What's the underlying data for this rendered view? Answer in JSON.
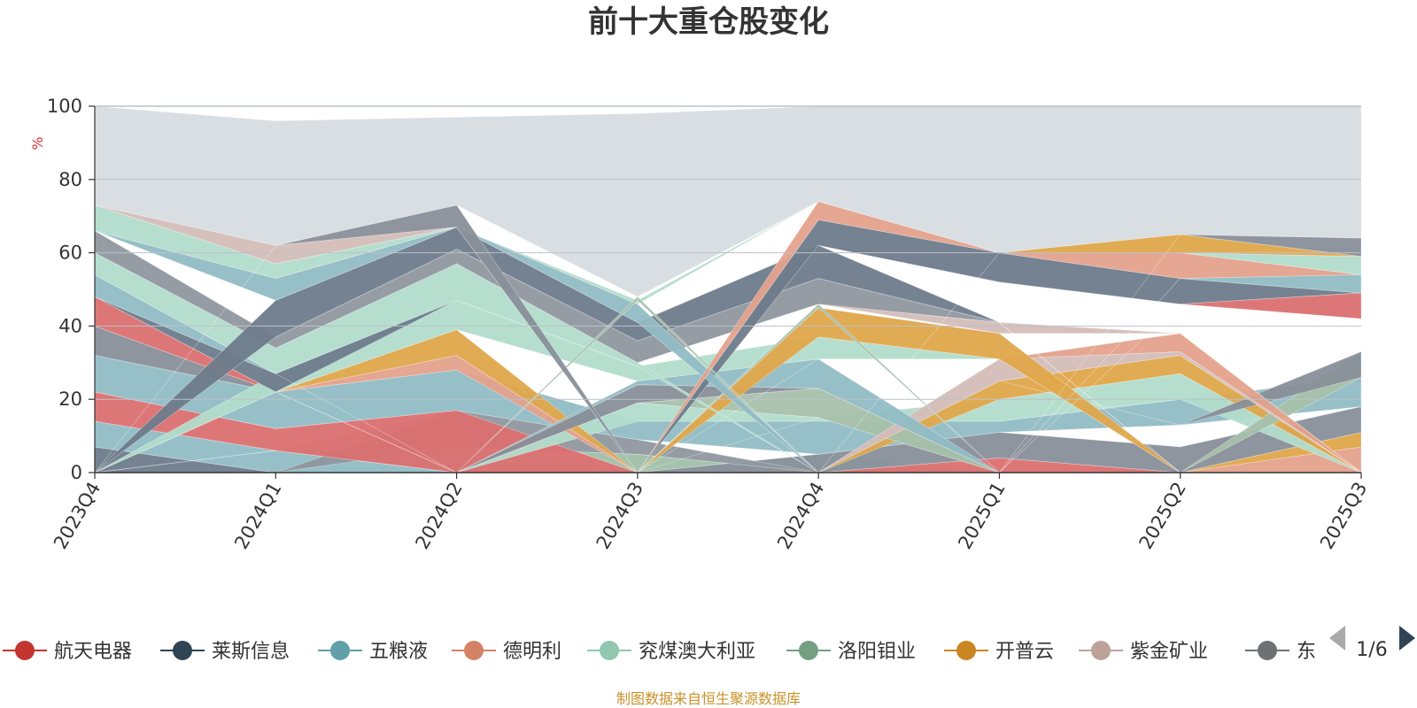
{
  "chart_data": {
    "type": "area",
    "title": "前十大重仓股变化",
    "ylabel": "%",
    "ylim": [
      0,
      100
    ],
    "yticks": [
      0,
      20,
      40,
      60,
      80,
      100
    ],
    "categories": [
      "2023Q4",
      "2024Q1",
      "2024Q2",
      "2024Q3",
      "2024Q4",
      "2025Q1",
      "2025Q2",
      "2025Q3"
    ],
    "grid": true,
    "legend_position": "bottom",
    "bands": [
      {
        "color": "#6e7b8b",
        "lower": [
          0,
          0,
          0,
          0,
          0,
          0,
          0,
          0
        ],
        "upper": [
          7,
          0,
          0,
          0,
          0,
          0,
          0,
          0
        ]
      },
      {
        "color": "#91bcc5",
        "lower": [
          7,
          0,
          0,
          0,
          0,
          0,
          0,
          0
        ],
        "upper": [
          14,
          6,
          0,
          0,
          0,
          0,
          0,
          0
        ]
      },
      {
        "color": "#9fbfa8",
        "lower": [
          0,
          6,
          0,
          0,
          0,
          0,
          0,
          0
        ],
        "upper": [
          0,
          6,
          7,
          5,
          0,
          0,
          0,
          0
        ]
      },
      {
        "color": "#b2dccb",
        "lower": [
          0,
          0,
          0,
          0,
          0,
          0,
          0,
          0
        ],
        "upper": [
          0,
          0,
          0,
          0,
          5,
          0,
          0,
          0
        ]
      },
      {
        "color": "#db7070",
        "lower": [
          0,
          0,
          0,
          0,
          0,
          0,
          0,
          0
        ],
        "upper": [
          0,
          0,
          0,
          0,
          0,
          4,
          0,
          0
        ]
      },
      {
        "color": "#e4a18c",
        "lower": [
          0,
          0,
          0,
          0,
          0,
          0,
          0,
          0
        ],
        "upper": [
          0,
          0,
          0,
          0,
          0,
          0,
          0,
          7
        ]
      },
      {
        "color": "#dfa64b",
        "lower": [
          0,
          0,
          0,
          0,
          0,
          0,
          0,
          7
        ],
        "upper": [
          0,
          0,
          0,
          0,
          0,
          0,
          0,
          11
        ]
      },
      {
        "color": "#888f99",
        "lower": [
          0,
          0,
          0,
          0,
          0,
          4,
          0,
          11
        ],
        "upper": [
          0,
          0,
          0,
          0,
          5,
          11,
          7,
          18
        ]
      },
      {
        "color": "#d4bdb8",
        "lower": [
          0,
          6,
          7,
          0,
          0,
          0,
          0,
          0
        ],
        "upper": [
          0,
          6,
          17,
          0,
          0,
          0,
          0,
          0
        ]
      },
      {
        "color": "#8f979f",
        "lower": [
          0,
          0,
          7,
          5,
          0,
          0,
          0,
          0
        ],
        "upper": [
          0,
          0,
          17,
          9,
          0,
          0,
          0,
          0
        ]
      },
      {
        "color": "#db7070",
        "lower": [
          14,
          6,
          0,
          0,
          0,
          0,
          0,
          0
        ],
        "upper": [
          22,
          12,
          17,
          0,
          0,
          0,
          0,
          0
        ]
      },
      {
        "color": "#91bcc5",
        "lower": [
          22,
          12,
          17,
          9,
          5,
          11,
          13,
          18
        ],
        "upper": [
          32,
          22,
          28,
          14,
          14,
          14,
          20,
          26
        ]
      },
      {
        "color": "#b2dccb",
        "lower": [
          0,
          0,
          0,
          14,
          14,
          14,
          20,
          0
        ],
        "upper": [
          0,
          0,
          0,
          19,
          15,
          20,
          27,
          0
        ]
      },
      {
        "color": "#e4a18c",
        "lower": [
          0,
          22,
          28,
          0,
          0,
          0,
          0,
          0
        ],
        "upper": [
          0,
          22,
          32,
          0,
          0,
          0,
          0,
          0
        ]
      },
      {
        "color": "#dfa64b",
        "lower": [
          0,
          22,
          32,
          0,
          0,
          20,
          27,
          0
        ],
        "upper": [
          0,
          22,
          39,
          0,
          0,
          25,
          32,
          0
        ]
      },
      {
        "color": "#9fbfa8",
        "lower": [
          0,
          0,
          0,
          0,
          15,
          0,
          0,
          0
        ],
        "upper": [
          0,
          0,
          0,
          0,
          15,
          0,
          0,
          0
        ]
      },
      {
        "color": "#a7c0ab",
        "lower": [
          0,
          0,
          0,
          19,
          15,
          0,
          0,
          26
        ],
        "upper": [
          0,
          0,
          0,
          19,
          23,
          0,
          0,
          33
        ]
      },
      {
        "color": "#888f99",
        "lower": [
          32,
          22,
          0,
          19,
          23,
          25,
          13,
          26
        ],
        "upper": [
          40,
          22,
          0,
          24,
          23,
          25,
          13,
          33
        ]
      },
      {
        "color": "#d4bdb8",
        "lower": [
          0,
          0,
          0,
          0,
          0,
          25,
          32,
          0
        ],
        "upper": [
          0,
          0,
          0,
          0,
          0,
          31,
          33,
          0
        ]
      },
      {
        "color": "#91bcc5",
        "lower": [
          0,
          0,
          0,
          24,
          23,
          0,
          0,
          0
        ],
        "upper": [
          0,
          0,
          0,
          25,
          31,
          0,
          0,
          0
        ]
      },
      {
        "color": "#e4a18c",
        "lower": [
          0,
          0,
          0,
          0,
          31,
          31,
          33,
          0
        ],
        "upper": [
          0,
          0,
          0,
          0,
          31,
          31,
          38,
          0
        ]
      },
      {
        "color": "#db7070",
        "lower": [
          40,
          22,
          0,
          0,
          0,
          0,
          0,
          0
        ],
        "upper": [
          48,
          22,
          0,
          0,
          0,
          0,
          0,
          0
        ]
      },
      {
        "color": "#b2dccb",
        "lower": [
          0,
          22,
          39,
          25,
          31,
          31,
          0,
          0
        ],
        "upper": [
          0,
          27,
          47,
          29,
          37,
          31,
          0,
          0
        ]
      },
      {
        "color": "#dfa64b",
        "lower": [
          0,
          0,
          0,
          0,
          37,
          31,
          0,
          0
        ],
        "upper": [
          0,
          0,
          0,
          0,
          45,
          38,
          0,
          0
        ]
      },
      {
        "color": "#6e7b8b",
        "lower": [
          48,
          22,
          47,
          29,
          45,
          38,
          38,
          33
        ],
        "upper": [
          48,
          27,
          47,
          29,
          45,
          38,
          38,
          33
        ]
      },
      {
        "color": "#91bcc5",
        "lower": [
          48,
          27,
          0,
          0,
          0,
          0,
          0,
          0
        ],
        "upper": [
          54,
          27,
          0,
          0,
          0,
          0,
          0,
          0
        ]
      },
      {
        "color": "#b2dccb",
        "lower": [
          54,
          27,
          47,
          29,
          0,
          0,
          0,
          0
        ],
        "upper": [
          60,
          34,
          57,
          30,
          0,
          0,
          0,
          0
        ]
      },
      {
        "color": "#a7c0ab",
        "lower": [
          0,
          0,
          0,
          0,
          45,
          0,
          0,
          0
        ],
        "upper": [
          0,
          0,
          0,
          0,
          46,
          0,
          0,
          0
        ]
      },
      {
        "color": "#d4bdb8",
        "lower": [
          0,
          0,
          0,
          0,
          46,
          38,
          38,
          0
        ],
        "upper": [
          0,
          0,
          0,
          0,
          46,
          41,
          38,
          0
        ]
      },
      {
        "color": "#8f979f",
        "lower": [
          60,
          34,
          57,
          30,
          46,
          41,
          0,
          0
        ],
        "upper": [
          66,
          37,
          61,
          36,
          53,
          41,
          0,
          0
        ]
      },
      {
        "color": "#6e7b8b",
        "lower": [
          0,
          37,
          61,
          36,
          53,
          41,
          0,
          0
        ],
        "upper": [
          0,
          47,
          67,
          41,
          62,
          41,
          0,
          0
        ]
      },
      {
        "color": "#6e7b8b",
        "lower": [
          0,
          0,
          0,
          0,
          62,
          52,
          46,
          49
        ],
        "upper": [
          0,
          0,
          0,
          0,
          69,
          60,
          53,
          49
        ]
      },
      {
        "color": "#db7070",
        "lower": [
          0,
          0,
          0,
          0,
          0,
          0,
          46,
          42
        ],
        "upper": [
          0,
          0,
          0,
          0,
          0,
          0,
          46,
          49
        ]
      },
      {
        "color": "#91bcc5",
        "lower": [
          66,
          47,
          67,
          41,
          0,
          0,
          53,
          49
        ],
        "upper": [
          66,
          53,
          67,
          46,
          0,
          0,
          53,
          54
        ]
      },
      {
        "color": "#e4a18c",
        "lower": [
          0,
          0,
          0,
          0,
          69,
          60,
          53,
          54
        ],
        "upper": [
          0,
          0,
          0,
          0,
          74,
          60,
          60,
          54
        ]
      },
      {
        "color": "#b2dccb",
        "lower": [
          66,
          53,
          67,
          46,
          74,
          60,
          60,
          54
        ],
        "upper": [
          73,
          57,
          67,
          47,
          74,
          60,
          60,
          59
        ]
      },
      {
        "color": "#a7c0ab",
        "lower": [
          0,
          0,
          0,
          47,
          0,
          0,
          0,
          0
        ],
        "upper": [
          0,
          0,
          0,
          48,
          0,
          0,
          0,
          0
        ]
      },
      {
        "color": "#dfa64b",
        "lower": [
          0,
          0,
          0,
          0,
          0,
          60,
          60,
          59
        ],
        "upper": [
          0,
          0,
          0,
          0,
          0,
          60,
          65,
          59
        ]
      },
      {
        "color": "#d4bdb8",
        "lower": [
          73,
          57,
          67,
          0,
          0,
          0,
          0,
          0
        ],
        "upper": [
          73,
          62,
          67,
          0,
          0,
          0,
          0,
          0
        ]
      },
      {
        "color": "#888f99",
        "lower": [
          0,
          62,
          67,
          0,
          0,
          0,
          65,
          59
        ],
        "upper": [
          0,
          62,
          73,
          0,
          0,
          0,
          65,
          64
        ]
      },
      {
        "color": "#d7dce2",
        "lower": [
          73,
          62,
          73,
          48,
          74,
          60,
          65,
          64
        ],
        "upper": [
          100,
          96,
          97,
          98,
          100,
          100,
          100,
          100
        ]
      }
    ]
  },
  "legend": {
    "items": [
      {
        "label": "航天电器",
        "color": "#c23531"
      },
      {
        "label": "莱斯信息",
        "color": "#2f4554"
      },
      {
        "label": "五粮液",
        "color": "#61a0a8"
      },
      {
        "label": "德明利",
        "color": "#d48265"
      },
      {
        "label": "兖煤澳大利亚",
        "color": "#91c7ae"
      },
      {
        "label": "洛阳钼业",
        "color": "#749f83"
      },
      {
        "label": "开普云",
        "color": "#ca8622"
      },
      {
        "label": "紫金矿业",
        "color": "#bda29a"
      },
      {
        "label": "东",
        "color": "#6e7074"
      }
    ],
    "pager": "1/6"
  },
  "footer": "制图数据来自恒生聚源数据库"
}
